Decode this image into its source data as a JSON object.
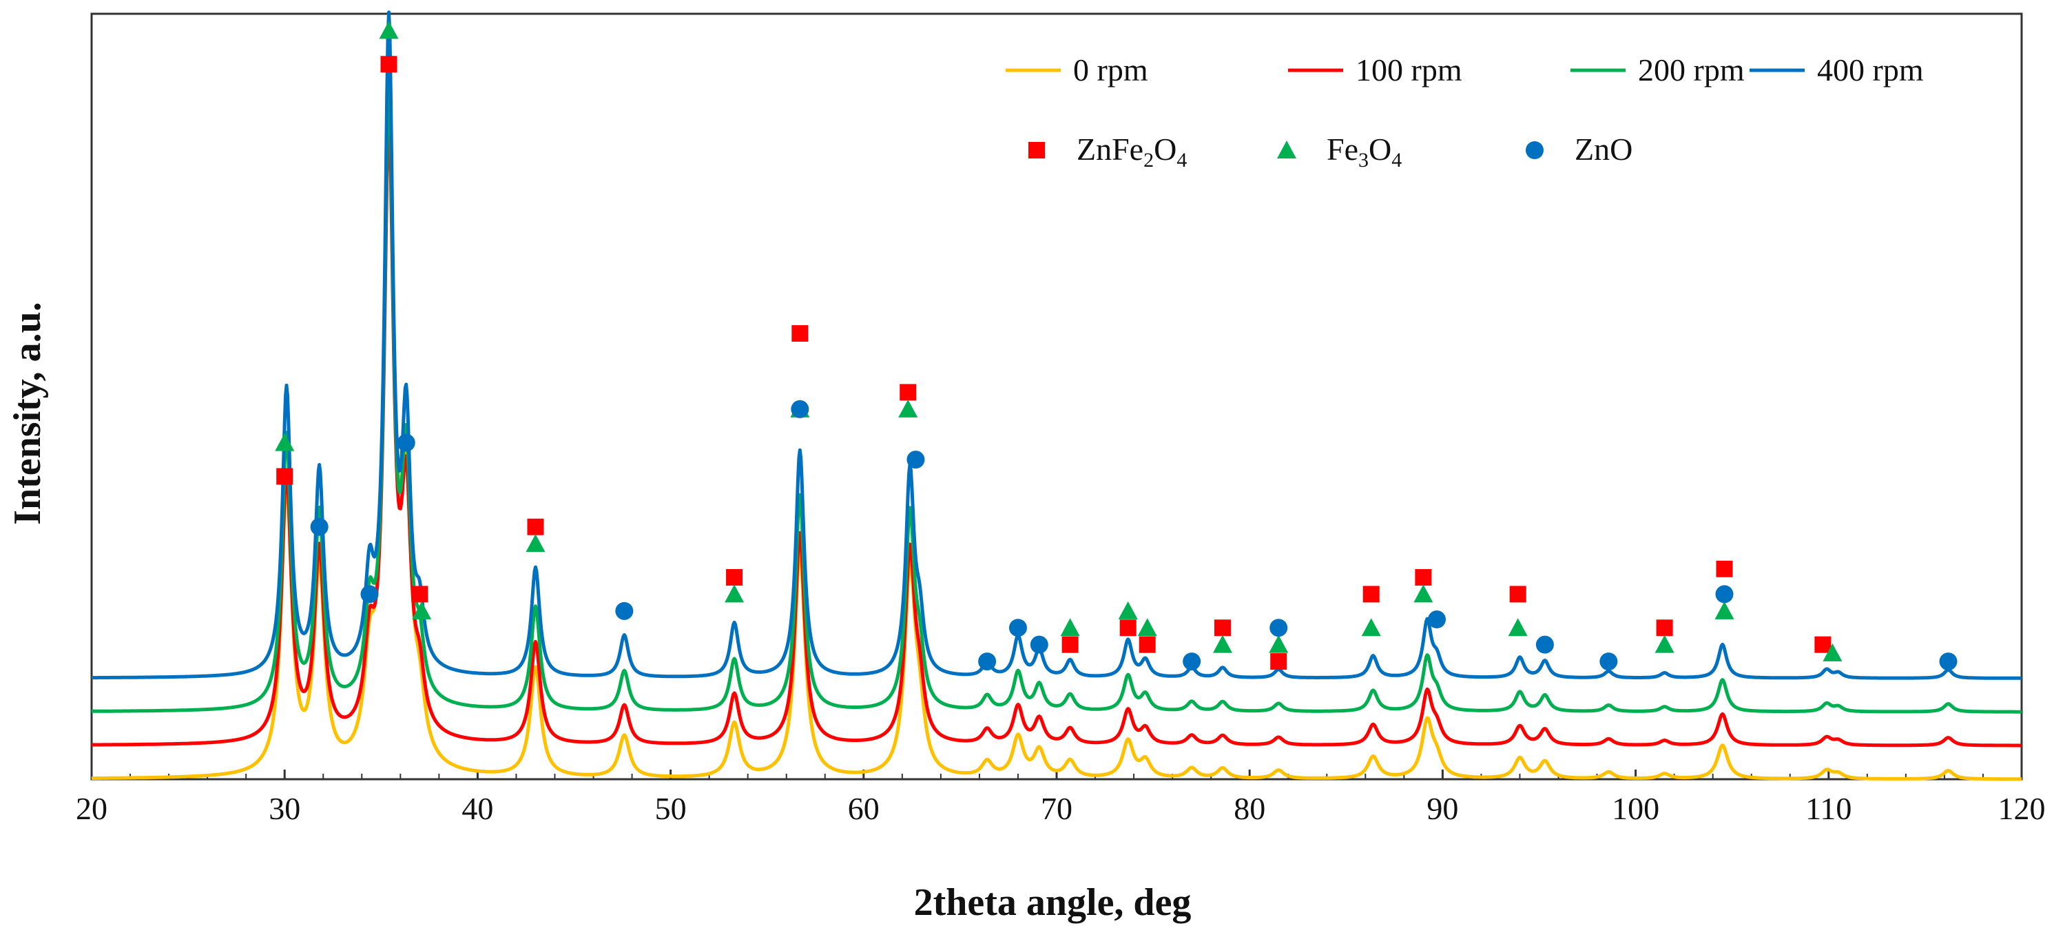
{
  "chart_data": {
    "type": "line",
    "title": "",
    "xlabel": "2theta angle, deg",
    "ylabel": "Intensity, a.u.",
    "xlim": [
      20,
      120
    ],
    "xticks": [
      "20",
      "30",
      "40",
      "50",
      "60",
      "70",
      "80",
      "90",
      "100",
      "110",
      "120"
    ],
    "yticks": [],
    "grid": false,
    "legend_position": "top-right",
    "y_scale": "arbitrary units (stacked, offset)",
    "series": [
      {
        "name": "0 rpm",
        "color": "#FFC000",
        "offset": 0
      },
      {
        "name": "100 rpm",
        "color": "#FF0000",
        "offset": 2
      },
      {
        "name": "200 rpm",
        "color": "#00B050",
        "offset": 4
      },
      {
        "name": "400 rpm",
        "color": "#0070C0",
        "offset": 6
      }
    ],
    "peaks": [
      {
        "x": 30.1,
        "h": 17
      },
      {
        "x": 31.8,
        "h": 12
      },
      {
        "x": 34.4,
        "h": 5
      },
      {
        "x": 35.4,
        "h": 38
      },
      {
        "x": 36.3,
        "h": 14
      },
      {
        "x": 37.0,
        "h": 3
      },
      {
        "x": 43.0,
        "h": 6.5
      },
      {
        "x": 47.6,
        "h": 2.5
      },
      {
        "x": 53.3,
        "h": 3.2
      },
      {
        "x": 56.7,
        "h": 13.5
      },
      {
        "x": 62.4,
        "h": 12
      },
      {
        "x": 62.9,
        "h": 3
      },
      {
        "x": 66.4,
        "h": 0.9
      },
      {
        "x": 68.0,
        "h": 2.4
      },
      {
        "x": 69.1,
        "h": 1.6
      },
      {
        "x": 70.7,
        "h": 1
      },
      {
        "x": 73.7,
        "h": 2.2
      },
      {
        "x": 74.6,
        "h": 1
      },
      {
        "x": 77.0,
        "h": 0.6
      },
      {
        "x": 78.6,
        "h": 0.6
      },
      {
        "x": 81.5,
        "h": 0.5
      },
      {
        "x": 86.4,
        "h": 1.3
      },
      {
        "x": 89.2,
        "h": 3.3
      },
      {
        "x": 89.7,
        "h": 1
      },
      {
        "x": 94.0,
        "h": 1.2
      },
      {
        "x": 95.3,
        "h": 1
      },
      {
        "x": 98.6,
        "h": 0.4
      },
      {
        "x": 101.5,
        "h": 0.3
      },
      {
        "x": 104.5,
        "h": 2
      },
      {
        "x": 109.9,
        "h": 0.5
      },
      {
        "x": 110.5,
        "h": 0.3
      },
      {
        "x": 116.2,
        "h": 0.5
      }
    ],
    "phase_markers": {
      "ZnFe2O4": [
        {
          "x": 30.0,
          "y": 18
        },
        {
          "x": 35.4,
          "y": 42.5
        },
        {
          "x": 37.0,
          "y": 11
        },
        {
          "x": 43.0,
          "y": 15
        },
        {
          "x": 53.3,
          "y": 12
        },
        {
          "x": 56.7,
          "y": 26.5
        },
        {
          "x": 62.3,
          "y": 23
        },
        {
          "x": 70.7,
          "y": 8
        },
        {
          "x": 73.7,
          "y": 9
        },
        {
          "x": 74.7,
          "y": 8
        },
        {
          "x": 78.6,
          "y": 9
        },
        {
          "x": 81.5,
          "y": 7
        },
        {
          "x": 86.3,
          "y": 11
        },
        {
          "x": 89.0,
          "y": 12
        },
        {
          "x": 93.9,
          "y": 11
        },
        {
          "x": 101.5,
          "y": 9
        },
        {
          "x": 104.6,
          "y": 12.5
        },
        {
          "x": 109.7,
          "y": 8
        }
      ],
      "Fe3O4": [
        {
          "x": 30.0,
          "y": 20
        },
        {
          "x": 35.4,
          "y": 44.5
        },
        {
          "x": 37.1,
          "y": 10
        },
        {
          "x": 43.0,
          "y": 14
        },
        {
          "x": 53.3,
          "y": 11
        },
        {
          "x": 56.7,
          "y": 22
        },
        {
          "x": 62.3,
          "y": 22
        },
        {
          "x": 70.7,
          "y": 9
        },
        {
          "x": 73.7,
          "y": 10
        },
        {
          "x": 74.7,
          "y": 9
        },
        {
          "x": 78.6,
          "y": 8
        },
        {
          "x": 81.5,
          "y": 8
        },
        {
          "x": 86.3,
          "y": 9
        },
        {
          "x": 89.0,
          "y": 11
        },
        {
          "x": 93.9,
          "y": 9
        },
        {
          "x": 101.5,
          "y": 8
        },
        {
          "x": 104.6,
          "y": 10
        },
        {
          "x": 110.2,
          "y": 7.5
        }
      ],
      "ZnO": [
        {
          "x": 31.8,
          "y": 15
        },
        {
          "x": 34.4,
          "y": 11
        },
        {
          "x": 36.3,
          "y": 20
        },
        {
          "x": 47.6,
          "y": 10
        },
        {
          "x": 56.7,
          "y": 22
        },
        {
          "x": 62.7,
          "y": 19
        },
        {
          "x": 66.4,
          "y": 7
        },
        {
          "x": 68.0,
          "y": 9
        },
        {
          "x": 69.1,
          "y": 8
        },
        {
          "x": 77.0,
          "y": 7
        },
        {
          "x": 81.5,
          "y": 9
        },
        {
          "x": 89.7,
          "y": 9.5
        },
        {
          "x": 95.3,
          "y": 8
        },
        {
          "x": 98.6,
          "y": 7
        },
        {
          "x": 104.6,
          "y": 11
        },
        {
          "x": 116.2,
          "y": 7
        }
      ]
    },
    "phase_legend": [
      {
        "marker": "square",
        "color": "#FF0000",
        "label_base1": "ZnFe",
        "sub1": "2",
        "label_base2": "O",
        "sub2": "4"
      },
      {
        "marker": "triangle",
        "color": "#00B050",
        "label_base1": "Fe",
        "sub1": "3",
        "label_base2": "O",
        "sub2": "4"
      },
      {
        "marker": "circle",
        "color": "#0070C0",
        "label_base1": "ZnO",
        "sub1": "",
        "label_base2": "",
        "sub2": ""
      }
    ],
    "ylim": [
      0,
      45.5
    ]
  }
}
